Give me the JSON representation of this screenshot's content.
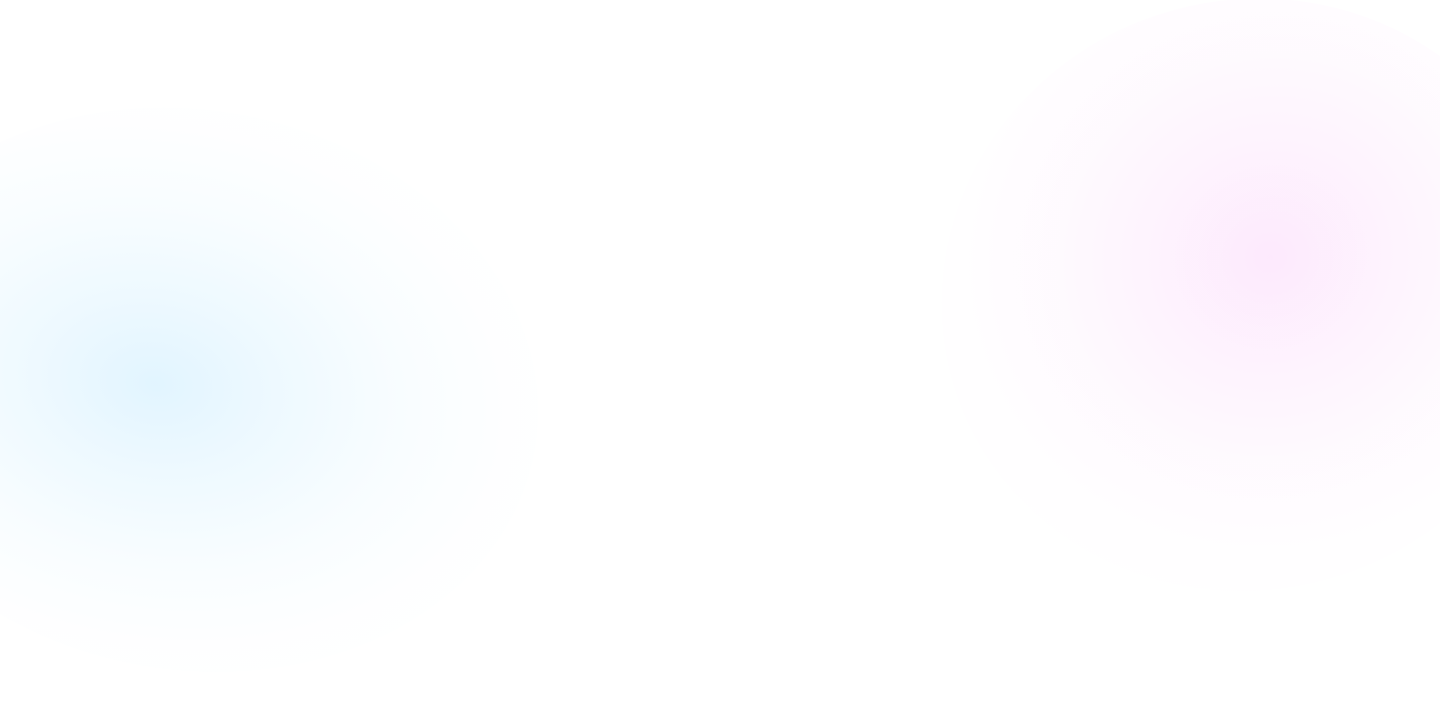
{
  "background": {
    "base_color": "#ffffff",
    "glows": [
      {
        "name": "blue-glow",
        "color": "#e0f4ff"
      },
      {
        "name": "pink-glow",
        "color": "#fde8fd"
      }
    ]
  }
}
